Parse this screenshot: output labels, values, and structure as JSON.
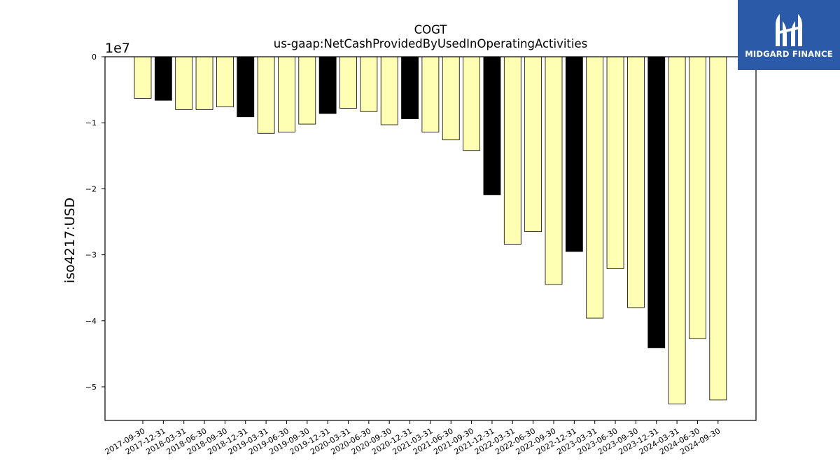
{
  "chart_data": {
    "type": "bar",
    "title": "COGT",
    "subtitle": "us-gaap:NetCashProvidedByUsedInOperatingActivities",
    "ylabel": "iso4217:USD",
    "xlabel": "",
    "scale_label": "1e7",
    "ylim": [
      -5.5,
      0
    ],
    "yticks": [
      0,
      -1,
      -2,
      -3,
      -4,
      -5
    ],
    "ytick_labels": [
      "0",
      "−1",
      "−2",
      "−3",
      "−4",
      "−5"
    ],
    "units_multiplier": 10000000,
    "categories": [
      "2017-09-30",
      "2017-12-31",
      "2018-03-31",
      "2018-06-30",
      "2018-09-30",
      "2018-12-31",
      "2019-03-31",
      "2019-06-30",
      "2019-09-30",
      "2019-12-31",
      "2020-03-31",
      "2020-06-30",
      "2020-09-30",
      "2020-12-31",
      "2021-03-31",
      "2021-06-30",
      "2021-09-30",
      "2021-12-31",
      "2022-03-31",
      "2022-06-30",
      "2022-09-30",
      "2022-12-31",
      "2023-03-31",
      "2023-06-30",
      "2023-09-30",
      "2023-12-31",
      "2024-03-31",
      "2024-06-30",
      "2024-09-30"
    ],
    "values": [
      -0.63,
      -0.66,
      -0.8,
      -0.8,
      -0.76,
      -0.91,
      -1.16,
      -1.14,
      -1.02,
      -0.86,
      -0.78,
      -0.83,
      -1.03,
      -0.94,
      -1.14,
      -1.26,
      -1.42,
      -2.09,
      -2.84,
      -2.65,
      -3.45,
      -2.95,
      -3.96,
      -3.21,
      -3.8,
      -4.41,
      -5.26,
      -4.27,
      -5.2
    ],
    "colors": {
      "quarter": "#ffffb3",
      "year_end": "#000000",
      "edge": "#000000"
    },
    "year_end_quarter": "12-31",
    "grid": false,
    "legend": "none"
  },
  "logo": {
    "text": "MIDGARD FINANCE",
    "background": "#2a5aa8"
  }
}
